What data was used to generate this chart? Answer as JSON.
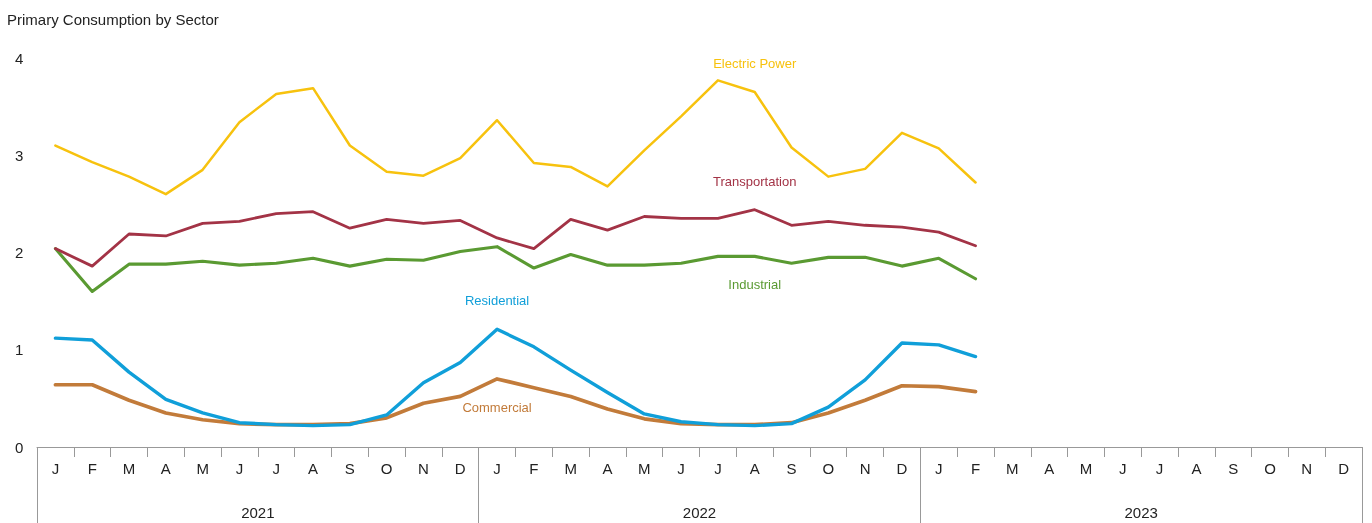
{
  "chart_data": {
    "type": "line",
    "title": "Primary Consumption by Sector",
    "categories": [
      "J",
      "F",
      "M",
      "A",
      "M",
      "J",
      "J",
      "A",
      "S",
      "O",
      "N",
      "D",
      "J",
      "F",
      "M",
      "A",
      "M",
      "J",
      "J",
      "A",
      "S",
      "O",
      "N",
      "D",
      "J",
      "F",
      "M",
      "A",
      "M",
      "J",
      "J",
      "A",
      "S",
      "O",
      "N",
      "D"
    ],
    "series": [
      {
        "name": "Electric Power",
        "color": "#f7c20e",
        "values": [
          3.1,
          2.93,
          2.78,
          2.6,
          2.85,
          3.34,
          3.63,
          3.69,
          3.1,
          2.83,
          2.79,
          2.97,
          3.36,
          2.92,
          2.88,
          2.68,
          3.05,
          3.4,
          3.77,
          3.65,
          3.08,
          2.78,
          2.86,
          3.23,
          3.07,
          2.72,
          null,
          null,
          null,
          null,
          null,
          null,
          null,
          null,
          null,
          null
        ]
      },
      {
        "name": "Transportation",
        "color": "#a33346",
        "values": [
          2.04,
          1.86,
          2.19,
          2.17,
          2.3,
          2.32,
          2.4,
          2.42,
          2.25,
          2.34,
          2.3,
          2.33,
          2.15,
          2.04,
          2.34,
          2.23,
          2.37,
          2.35,
          2.35,
          2.44,
          2.28,
          2.32,
          2.28,
          2.26,
          2.21,
          2.07,
          null,
          null,
          null,
          null,
          null,
          null,
          null,
          null,
          null,
          null
        ]
      },
      {
        "name": "Industrial",
        "color": "#5a9a32",
        "values": [
          2.04,
          1.6,
          1.88,
          1.88,
          1.91,
          1.87,
          1.89,
          1.94,
          1.86,
          1.93,
          1.92,
          2.01,
          2.06,
          1.84,
          1.98,
          1.87,
          1.87,
          1.89,
          1.96,
          1.96,
          1.89,
          1.95,
          1.95,
          1.86,
          1.94,
          1.73,
          null,
          null,
          null,
          null,
          null,
          null,
          null,
          null,
          null,
          null
        ]
      },
      {
        "name": "Residential",
        "color": "#109fd9",
        "values": [
          1.12,
          1.1,
          0.77,
          0.49,
          0.35,
          0.25,
          0.23,
          0.22,
          0.23,
          0.33,
          0.66,
          0.87,
          1.21,
          1.03,
          0.79,
          0.56,
          0.34,
          0.26,
          0.23,
          0.22,
          0.24,
          0.41,
          0.69,
          1.07,
          1.05,
          0.93,
          null,
          null,
          null,
          null,
          null,
          null,
          null,
          null,
          null,
          null
        ]
      },
      {
        "name": "Commercial",
        "color": "#c27b3a",
        "values": [
          0.64,
          0.64,
          0.48,
          0.35,
          0.28,
          0.24,
          0.23,
          0.23,
          0.24,
          0.3,
          0.45,
          0.52,
          0.7,
          0.61,
          0.52,
          0.39,
          0.29,
          0.24,
          0.23,
          0.23,
          0.25,
          0.35,
          0.48,
          0.63,
          0.62,
          0.57,
          null,
          null,
          null,
          null,
          null,
          null,
          null,
          null,
          null,
          null
        ]
      }
    ],
    "annotations": [
      "2021",
      "2022",
      "2023"
    ],
    "ylim": [
      0,
      4
    ],
    "yticks": [
      0,
      1,
      2,
      3,
      4
    ],
    "grid": false,
    "legend": false,
    "marker": "none",
    "line_style": "solid"
  }
}
